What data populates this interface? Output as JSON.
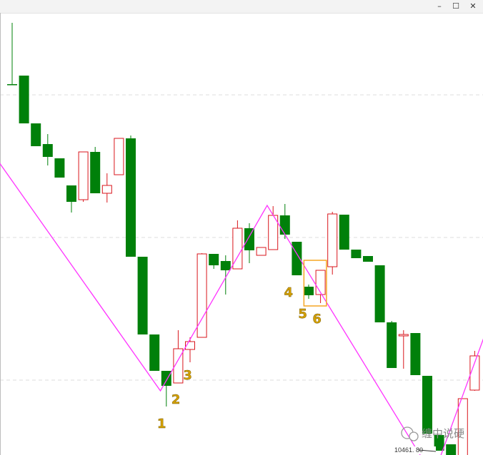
{
  "window": {
    "minimize_icon": "minimize-icon",
    "maximize_icon": "maximize-icon",
    "close_icon": "close-icon",
    "minimize_glyph": "–",
    "maximize_glyph": "☐",
    "close_glyph": "✕"
  },
  "chart_data": {
    "type": "candlestick",
    "up_color": "#d9161c",
    "down_color": "#00800a",
    "trendline_color": "#ff33ff",
    "box_color": "#f5a623",
    "label_color": "#d4a000",
    "price_label": "10461. 80",
    "watermark": "缠中说硬",
    "candles": [
      {
        "o": 46.5,
        "h": 55.1,
        "l": 46.5,
        "c": 46.5
      },
      {
        "o": 47.7,
        "h": 47.7,
        "l": 41.0,
        "c": 41.0
      },
      {
        "o": 41.0,
        "h": 41.0,
        "l": 37.8,
        "c": 37.8
      },
      {
        "o": 38.1,
        "h": 39.5,
        "l": 35.1,
        "c": 36.3
      },
      {
        "o": 36.1,
        "h": 36.1,
        "l": 33.4,
        "c": 33.4
      },
      {
        "o": 32.3,
        "h": 32.3,
        "l": 28.5,
        "c": 30.0
      },
      {
        "o": 30.3,
        "h": 37.0,
        "l": 30.0,
        "c": 37.0
      },
      {
        "o": 37.0,
        "h": 37.7,
        "l": 31.2,
        "c": 31.2
      },
      {
        "o": 31.2,
        "h": 34.0,
        "l": 29.9,
        "c": 32.3
      },
      {
        "o": 33.8,
        "h": 38.9,
        "l": 33.8,
        "c": 38.9
      },
      {
        "o": 38.9,
        "h": 39.3,
        "l": 22.3,
        "c": 22.3
      },
      {
        "o": 22.3,
        "h": 22.3,
        "l": 11.4,
        "c": 11.4
      },
      {
        "o": 11.4,
        "h": 11.4,
        "l": 6.3,
        "c": 6.3
      },
      {
        "o": 6.3,
        "h": 6.3,
        "l": 1.3,
        "c": 4.2
      },
      {
        "o": 4.6,
        "h": 12.0,
        "l": 4.6,
        "c": 9.4
      },
      {
        "o": 9.3,
        "h": 11.0,
        "l": 7.5,
        "c": 10.4
      },
      {
        "o": 11.0,
        "h": 22.8,
        "l": 11.0,
        "c": 22.7
      },
      {
        "o": 22.7,
        "h": 22.7,
        "l": 20.6,
        "c": 21.1
      },
      {
        "o": 21.7,
        "h": 22.5,
        "l": 17.0,
        "c": 20.4
      },
      {
        "o": 20.6,
        "h": 27.4,
        "l": 20.6,
        "c": 26.3
      },
      {
        "o": 26.3,
        "h": 27.0,
        "l": 21.4,
        "c": 23.2
      },
      {
        "o": 22.5,
        "h": 23.6,
        "l": 22.5,
        "c": 23.6
      },
      {
        "o": 23.3,
        "h": 29.4,
        "l": 23.3,
        "c": 28.1
      },
      {
        "o": 28.1,
        "h": 29.7,
        "l": 24.8,
        "c": 25.4
      },
      {
        "o": 24.4,
        "h": 24.4,
        "l": 19.7,
        "c": 19.7
      },
      {
        "o": 18.1,
        "h": 18.4,
        "l": 16.4,
        "c": 16.9
      },
      {
        "o": 17.0,
        "h": 20.4,
        "l": 15.8,
        "c": 20.4
      },
      {
        "o": 20.9,
        "h": 28.6,
        "l": 19.8,
        "c": 28.3
      },
      {
        "o": 28.2,
        "h": 28.2,
        "l": 23.3,
        "c": 23.3
      },
      {
        "o": 23.3,
        "h": 23.3,
        "l": 22.1,
        "c": 22.1
      },
      {
        "o": 22.4,
        "h": 22.4,
        "l": 21.6,
        "c": 21.6
      },
      {
        "o": 21.1,
        "h": 21.1,
        "l": 13.1,
        "c": 13.1
      },
      {
        "o": 13.1,
        "h": 13.3,
        "l": 6.7,
        "c": 6.7
      },
      {
        "o": 11.2,
        "h": 12.0,
        "l": 6.6,
        "c": 11.4
      },
      {
        "o": 11.6,
        "h": 11.6,
        "l": 5.7,
        "c": 5.7
      },
      {
        "o": 5.6,
        "h": 5.6,
        "l": -2.5,
        "c": -2.5
      },
      {
        "o": -2.7,
        "h": -2.7,
        "l": -4.9,
        "c": -4.9
      },
      {
        "o": -4.0,
        "h": -4.0,
        "l": -8.4,
        "c": -6.8
      },
      {
        "o": -6.8,
        "h": 2.4,
        "l": -6.8,
        "c": 2.4
      },
      {
        "o": 3.6,
        "h": 9.1,
        "l": 3.5,
        "c": 8.4
      }
    ],
    "pivots": [
      {
        "i": -2.15,
        "v": 38.0
      },
      {
        "i": 12.5,
        "v": 3.5
      },
      {
        "i": 21.5,
        "v": 29.5
      },
      {
        "i": 35.5,
        "v": -8.5
      },
      {
        "i": 39.75,
        "v": 10.9
      }
    ],
    "box": {
      "from": 24.6,
      "to": 26.5,
      "lo": 15.4,
      "hi": 21.8
    },
    "labels": [
      {
        "text": "1",
        "i": 12.6,
        "v": -1.7
      },
      {
        "text": "2",
        "i": 13.8,
        "v": 1.7
      },
      {
        "text": "3",
        "i": 14.8,
        "v": 5.1
      },
      {
        "text": "4",
        "i": 23.3,
        "v": 16.7
      },
      {
        "text": "5",
        "i": 24.5,
        "v": 13.7
      },
      {
        "text": "6",
        "i": 25.7,
        "v": 13.0
      }
    ],
    "grid_values": [
      45.0,
      25.0,
      5.0,
      -7.3
    ]
  }
}
